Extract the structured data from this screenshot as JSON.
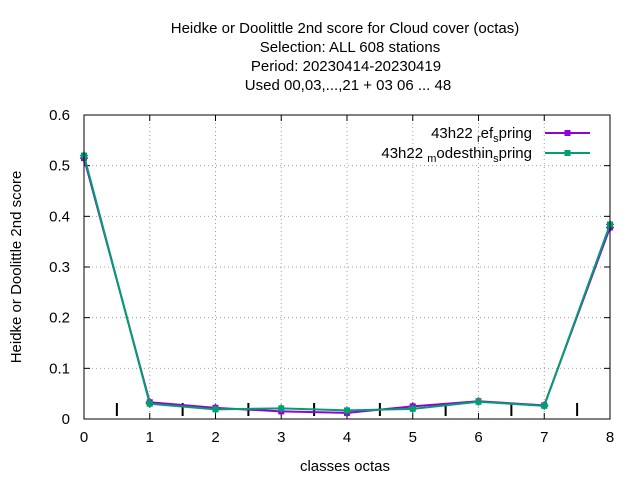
{
  "chart_data": {
    "type": "line",
    "title_lines": [
      "Heidke or Doolittle 2nd score  for Cloud cover (octas)",
      "Selection: ALL    608 stations",
      "Period: 20230414-20230419",
      "Used  00,03,...,21  + 03 06 ... 48"
    ],
    "xlabel": "classes octas",
    "ylabel": "Heidke or Doolittle 2nd score",
    "xlim": [
      0,
      8
    ],
    "ylim": [
      0,
      0.6
    ],
    "x_ticks": [
      "0",
      "1",
      "2",
      "3",
      "4",
      "5",
      "6",
      "7",
      "8"
    ],
    "y_ticks": [
      "0",
      "0.1",
      "0.2",
      "0.3",
      "0.4",
      "0.5",
      "0.6"
    ],
    "grid": true,
    "legend_position": "top-right",
    "x": [
      0,
      1,
      2,
      3,
      4,
      5,
      6,
      7,
      8
    ],
    "class_boundary_marks": [
      0.5,
      1.5,
      2.5,
      3.5,
      4.5,
      5.5,
      6.5,
      7.5
    ],
    "series": [
      {
        "name": "43h22 ref_spring",
        "legend_parts": [
          "43h22 ",
          "r",
          "ef",
          "s",
          "pring"
        ],
        "color": "#9400d3",
        "values": [
          0.515,
          0.033,
          0.022,
          0.015,
          0.012,
          0.025,
          0.035,
          0.027,
          0.378
        ]
      },
      {
        "name": "43h22 modesthin_spring",
        "legend_parts": [
          "43h22 ",
          "m",
          "odesthin",
          "s",
          "pring"
        ],
        "color": "#009e73",
        "values": [
          0.52,
          0.03,
          0.019,
          0.021,
          0.017,
          0.02,
          0.034,
          0.026,
          0.384
        ]
      }
    ]
  }
}
